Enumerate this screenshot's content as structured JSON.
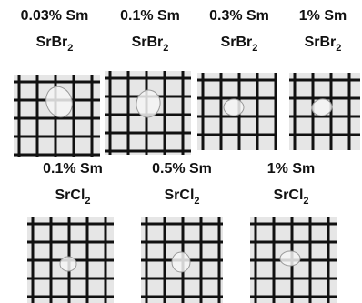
{
  "panels": [
    {
      "concentration": "0.03% Sm",
      "compound": "SrBr",
      "subscript": "2"
    },
    {
      "concentration": "0.1% Sm",
      "compound": "SrBr",
      "subscript": "2"
    },
    {
      "concentration": "0.3% Sm",
      "compound": "SrBr",
      "subscript": "2"
    },
    {
      "concentration": "1% Sm",
      "compound": "SrBr",
      "subscript": "2"
    },
    {
      "concentration": "0.1% Sm",
      "compound": "SrCl",
      "subscript": "2"
    },
    {
      "concentration": "0.5% Sm",
      "compound": "SrCl",
      "subscript": "2"
    },
    {
      "concentration": "1% Sm",
      "compound": "SrCl",
      "subscript": "2"
    }
  ]
}
